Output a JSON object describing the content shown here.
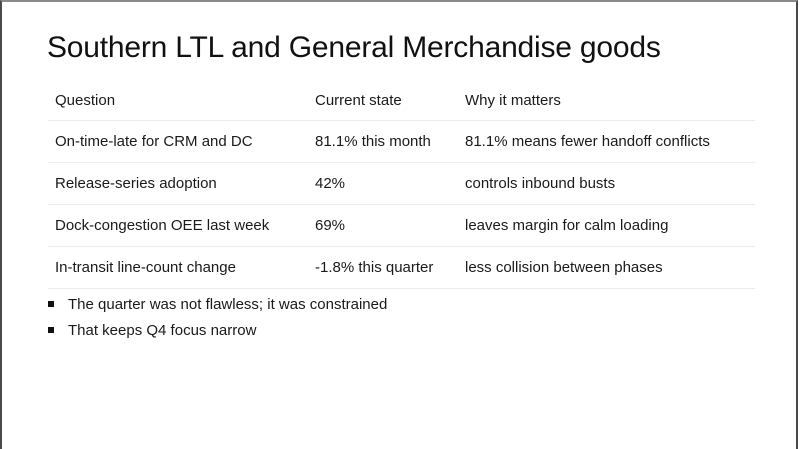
{
  "slide": {
    "title": "Southern LTL and General Merchandise goods",
    "table": {
      "headers": [
        "Question",
        "Current state",
        "Why it matters"
      ],
      "rows": [
        [
          "On-time-late for CRM and DC",
          "81.1% this month",
          "81.1% means fewer handoff conflicts"
        ],
        [
          "Release-series adoption",
          "42%",
          "controls inbound busts"
        ],
        [
          "Dock-congestion OEE last week",
          "69%",
          "leaves margin for calm loading"
        ],
        [
          "In-transit line-count change",
          "-1.8% this quarter",
          "less collision between phases"
        ]
      ]
    },
    "bullets": [
      "The quarter was not flawless; it was constrained",
      "That keeps Q4 focus narrow"
    ],
    "colors": {
      "text": "#111111",
      "row_divider": "#ececec",
      "frame": "#4a4a4a",
      "background": "#ffffff"
    }
  }
}
